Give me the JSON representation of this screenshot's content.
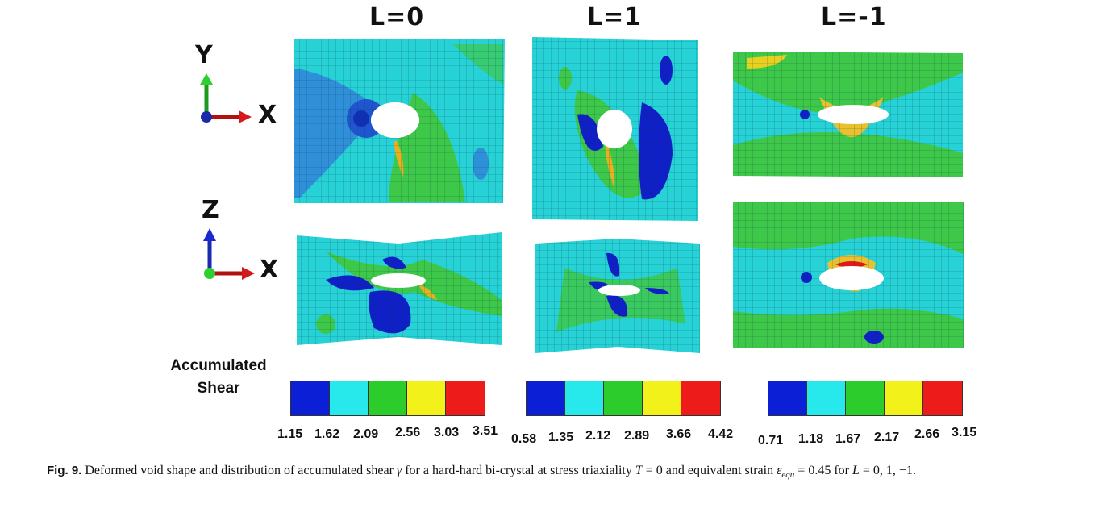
{
  "column_titles": [
    "L=0",
    "L=1",
    "L=-1"
  ],
  "axes_top": {
    "vertical": "Y",
    "horizontal": "X"
  },
  "axes_bottom": {
    "vertical": "Z",
    "horizontal": "X"
  },
  "legend_title_line1": "Accumulated",
  "legend_title_line2": "Shear",
  "colorbar_colors": [
    "#0b1fd6",
    "#27e8ea",
    "#2ccc2c",
    "#f2f21a",
    "#ee1b1b"
  ],
  "colorbars": [
    {
      "ticks": [
        "1.15",
        "1.62",
        "2.09",
        "2.56",
        "3.03",
        "3.51"
      ]
    },
    {
      "ticks": [
        "0.58",
        "1.35",
        "2.12",
        "2.89",
        "3.66",
        "4.42"
      ]
    },
    {
      "ticks": [
        "0.71",
        "1.18",
        "1.67",
        "2.17",
        "2.66",
        "3.15"
      ]
    }
  ],
  "caption": {
    "label": "Fig. 9.",
    "t1": " Deformed void shape and distribution of accumulated shear ",
    "gamma": "γ",
    "t2": " for a hard-hard bi-crystal at stress triaxiality ",
    "T": "T",
    "t3": " = 0 and equivalent strain ",
    "eps": "ε",
    "eps_sub": "equ",
    "t4": " = 0.45 for ",
    "L": "L",
    "t5": " = 0, 1, −1."
  }
}
